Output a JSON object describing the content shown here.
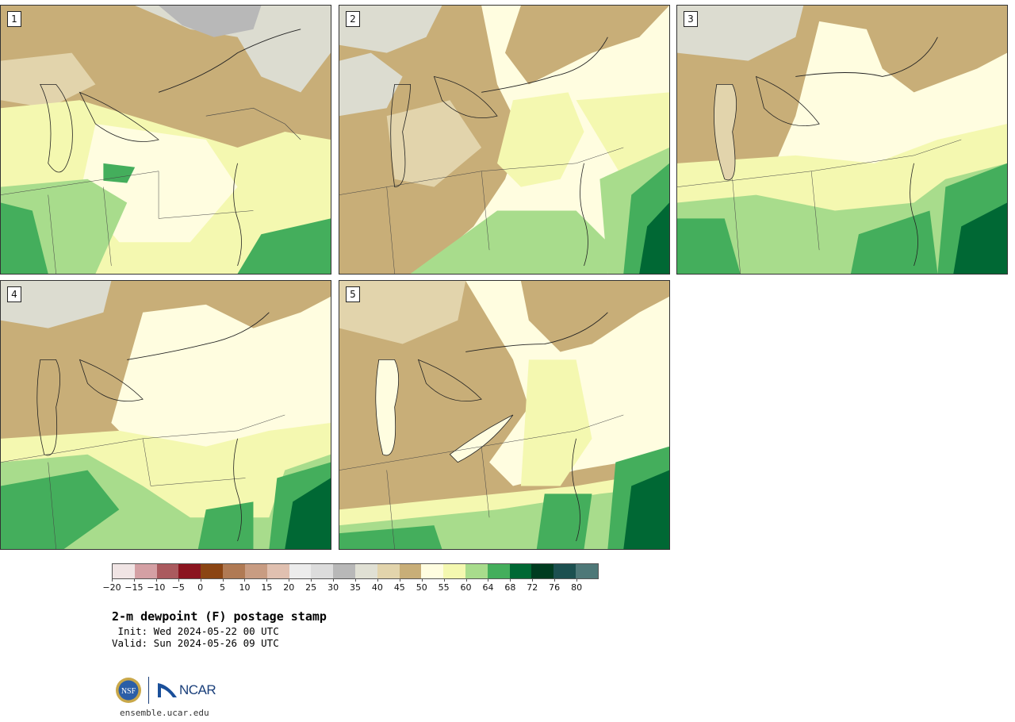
{
  "panels": [
    {
      "label": "1"
    },
    {
      "label": "2"
    },
    {
      "label": "3"
    },
    {
      "label": "4"
    },
    {
      "label": "5"
    }
  ],
  "colorbar": {
    "colors": [
      "#f0e4e4",
      "#d4a0a4",
      "#aa5a5e",
      "#8b1520",
      "#8b4513",
      "#b07a54",
      "#c89c82",
      "#e0c0b0",
      "#ececec",
      "#dcdcdc",
      "#b8b8b8",
      "#e0e0d4",
      "#e2d4ac",
      "#c8ae78",
      "#fffde0",
      "#f4f8b0",
      "#a8dc8c",
      "#44ae5c",
      "#006834",
      "#003c20",
      "#1c5050",
      "#4e7878"
    ],
    "ticks": [
      "−20",
      "−15",
      "−10",
      "−5",
      "0",
      "5",
      "10",
      "15",
      "20",
      "25",
      "30",
      "35",
      "40",
      "45",
      "50",
      "55",
      "60",
      "64",
      "68",
      "72",
      "76",
      "80"
    ]
  },
  "title": {
    "main": "2-m dewpoint (F) postage stamp",
    "init": " Init: Wed 2024-05-22 00 UTC",
    "valid": "Valid: Sun 2024-05-26 09 UTC"
  },
  "logos": {
    "nsf": "NSF",
    "ncar": "NCAR"
  },
  "website": "ensemble.ucar.edu"
}
